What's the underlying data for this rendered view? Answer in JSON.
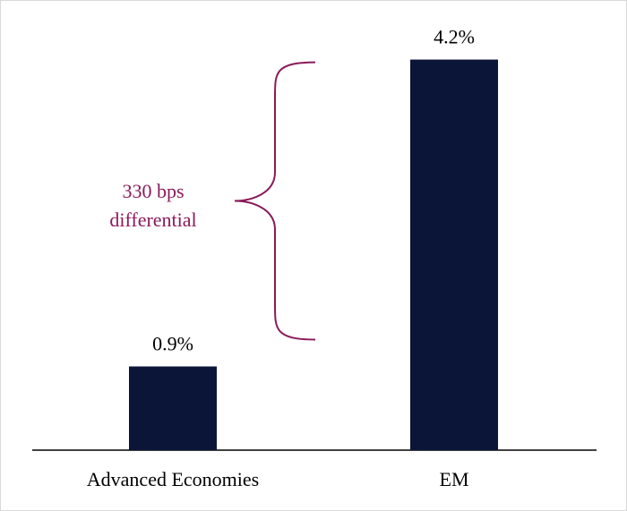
{
  "chart_data": {
    "type": "bar",
    "categories": [
      "Advanced Economies",
      "EM"
    ],
    "values": [
      0.9,
      4.2
    ],
    "value_labels": [
      "0.9%",
      "4.2%"
    ],
    "title": "",
    "xlabel": "",
    "ylabel": "",
    "ylim": [
      0,
      4.6
    ],
    "grid": false,
    "annotation": {
      "lines": [
        "330 bps",
        "differential"
      ],
      "from_value": 0.9,
      "to_value": 4.2
    }
  },
  "colors": {
    "bar": "#0b1538",
    "annotation": "#8b1a5a",
    "axis": "#000000"
  }
}
